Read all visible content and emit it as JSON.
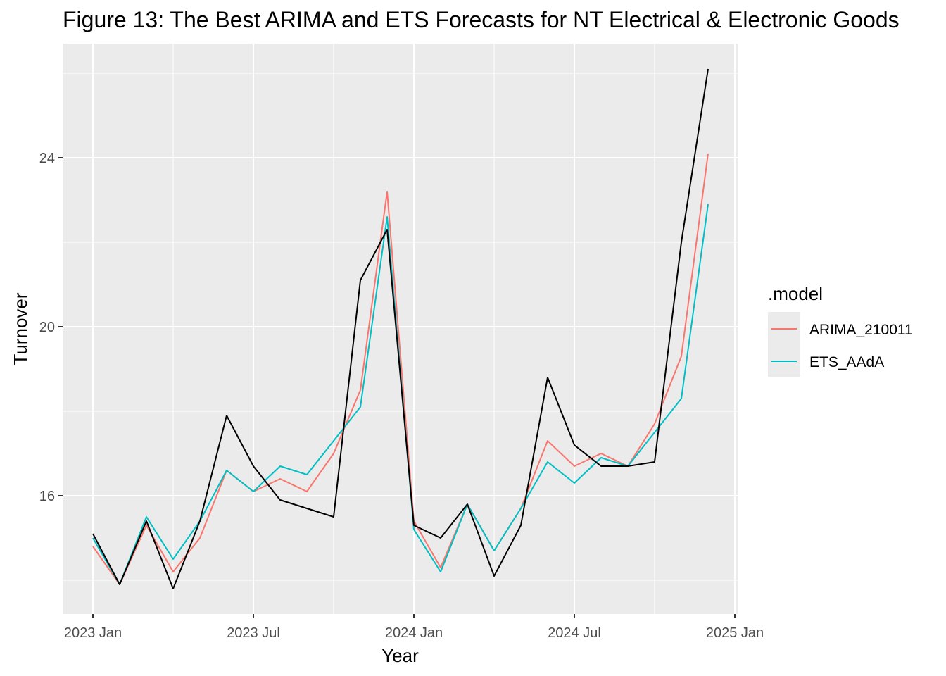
{
  "title": "Figure 13: The Best ARIMA and ETS Forecasts for NT Electrical & Electronic Goods",
  "chart_data": {
    "type": "line",
    "title": "Figure 13: The Best ARIMA and ETS Forecasts for NT Electrical & Electronic Goods",
    "xlabel": "Year",
    "ylabel": "Turnover",
    "x": [
      "2023 Jan",
      "2023 Feb",
      "2023 Mar",
      "2023 Apr",
      "2023 May",
      "2023 Jun",
      "2023 Jul",
      "2023 Aug",
      "2023 Sep",
      "2023 Oct",
      "2023 Nov",
      "2023 Dec",
      "2024 Jan",
      "2024 Feb",
      "2024 Mar",
      "2024 Apr",
      "2024 May",
      "2024 Jun",
      "2024 Jul",
      "2024 Aug",
      "2024 Sep",
      "2024 Oct",
      "2024 Nov",
      "2024 Dec"
    ],
    "x_ticks": [
      "2023 Jan",
      "2023 Jul",
      "2024 Jan",
      "2024 Jul",
      "2025 Jan"
    ],
    "y_ticks": [
      16,
      20,
      24
    ],
    "ylim": [
      13.2,
      26.7
    ],
    "grid": true,
    "legend_position": "right",
    "legend_title": ".model",
    "series": [
      {
        "name": "",
        "color": "#000000",
        "values": [
          15.1,
          13.9,
          15.4,
          13.8,
          15.4,
          17.9,
          16.7,
          15.9,
          15.7,
          15.5,
          21.1,
          22.3,
          15.3,
          15.0,
          15.8,
          14.1,
          15.3,
          18.8,
          17.2,
          16.7,
          16.7,
          16.8,
          22.0,
          26.1
        ]
      },
      {
        "name": "ARIMA_210011",
        "color": "#F8766D",
        "values": [
          14.8,
          13.9,
          15.3,
          14.2,
          15.0,
          16.6,
          16.1,
          16.4,
          16.1,
          17.0,
          18.5,
          23.2,
          15.4,
          14.3,
          15.8,
          14.7,
          15.7,
          17.3,
          16.7,
          17.0,
          16.7,
          17.7,
          19.3,
          24.1
        ]
      },
      {
        "name": "ETS_AAdA",
        "color": "#00BFC4",
        "values": [
          15.0,
          13.9,
          15.5,
          14.5,
          15.4,
          16.6,
          16.1,
          16.7,
          16.5,
          17.3,
          18.1,
          22.6,
          15.2,
          14.2,
          15.8,
          14.7,
          15.7,
          16.8,
          16.3,
          16.9,
          16.7,
          17.5,
          18.3,
          22.9
        ]
      }
    ]
  }
}
